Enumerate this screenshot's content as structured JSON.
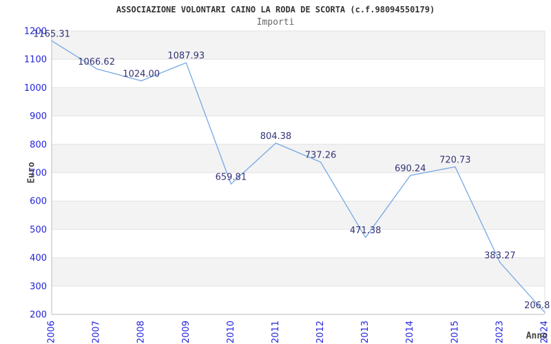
{
  "header": {
    "title": "ASSOCIAZIONE VOLONTARI CAINO LA RODA DE SCORTA (c.f.98094550179)",
    "subtitle": "Importi"
  },
  "chart_data": {
    "type": "line",
    "title": "ASSOCIAZIONE VOLONTARI CAINO LA RODA DE SCORTA (c.f.98094550179)",
    "subtitle": "Importi",
    "xlabel": "Anno",
    "ylabel": "Euro",
    "categories": [
      "2006",
      "2007",
      "2008",
      "2009",
      "2010",
      "2011",
      "2012",
      "2013",
      "2014",
      "2015",
      "2023",
      "2024"
    ],
    "values": [
      1165.31,
      1066.62,
      1024.0,
      1087.93,
      659.81,
      804.38,
      737.26,
      471.38,
      690.24,
      720.73,
      383.27,
      206.8
    ],
    "point_labels": [
      "1165.31",
      "1066.62",
      "1024.00",
      "1087.93",
      "659.81",
      "804.38",
      "737.26",
      "471.38",
      "690.24",
      "720.73",
      "383.27",
      "206.8"
    ],
    "ylim": [
      200,
      1200
    ],
    "y_tick_step": 100,
    "y_tick_labels": [
      "200",
      "300",
      "400",
      "500",
      "600",
      "700",
      "800",
      "900",
      "1000",
      "1100",
      "1200"
    ],
    "grid": true,
    "legend": "none",
    "colors": {
      "line": "#74a7e4",
      "tick_text": "#2222dd",
      "point_label_text": "#333377",
      "band_dark": "#f3f3f3",
      "band_light": "#ffffff",
      "gridline": "#e2e2e2",
      "axis_border": "#bbbbbb",
      "title_text": "#333333",
      "subtitle_text": "#666666",
      "axis_title_text": "#444444"
    }
  }
}
